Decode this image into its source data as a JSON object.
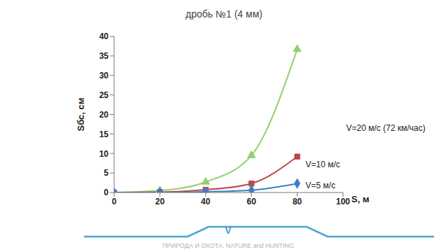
{
  "chart_data": {
    "type": "line",
    "title": "дробь №1 (4 мм)",
    "x_label": "S, м",
    "y_label": "Sбс, см",
    "x": [
      0,
      20,
      40,
      60,
      80
    ],
    "series": [
      {
        "name": "V=20 м/с (72 км/час)",
        "color": "#8fd16f",
        "marker": "triangle",
        "values": [
          0,
          0.5,
          2.7,
          9.5,
          36.7
        ]
      },
      {
        "name": "V=10 м/с",
        "color": "#b84a4a",
        "marker": "square",
        "values": [
          0,
          0.1,
          0.7,
          2.3,
          9.2
        ]
      },
      {
        "name": "V=5 м/с",
        "color": "#3d7cc9",
        "marker": "diamond",
        "values": [
          0,
          0,
          0.2,
          0.6,
          2.3
        ]
      }
    ],
    "xlim": [
      0,
      100
    ],
    "xticks": [
      0,
      20,
      40,
      60,
      80,
      100
    ],
    "ylim": [
      0,
      40
    ],
    "yticks": [
      0,
      5,
      10,
      15,
      20,
      25,
      30,
      35,
      40
    ],
    "grid": false,
    "footer": "V",
    "watermark": "ПРИРОДА И ОХОТА. NATURE and HUNTING"
  }
}
